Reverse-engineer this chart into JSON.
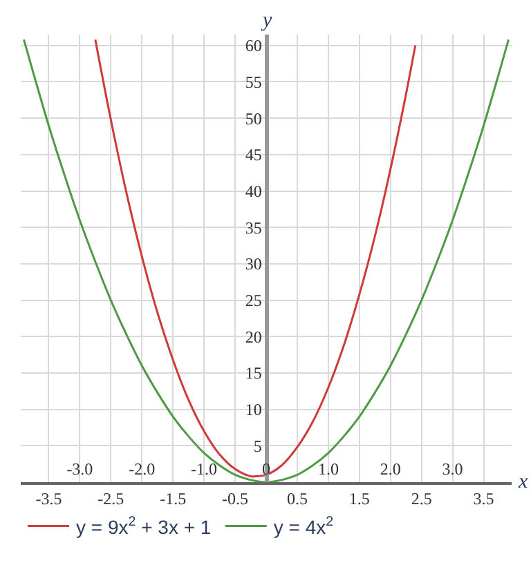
{
  "chart_data": {
    "type": "line",
    "xlabel": "x",
    "ylabel": "y",
    "xlim": [
      -3.95,
      3.95
    ],
    "ylim": [
      0,
      61.5
    ],
    "xticks": [
      -3.5,
      -2.5,
      -1.5,
      -0.5,
      0.5,
      1.5,
      2.5,
      3.5
    ],
    "x2lim": [
      -3.95,
      3.95
    ],
    "x2ticks": [
      {
        "value": -3,
        "label": "-3.0"
      },
      {
        "value": -2,
        "label": "-2.0"
      },
      {
        "value": -1,
        "label": "-1.0"
      },
      0,
      {
        "value": 1,
        "label": "1.0"
      },
      {
        "value": 2,
        "label": "2.0"
      },
      {
        "value": 3,
        "label": "3.0"
      }
    ],
    "yticks": [
      5,
      10,
      15,
      20,
      25,
      30,
      35,
      40,
      45,
      50,
      55,
      60
    ],
    "grid": true,
    "legend": "bottom",
    "marker": "none",
    "line_style": "solid",
    "series": [
      {
        "name": "y = 9x$^{2}$ + 3x + 1",
        "color": "#d03a3a",
        "x": [
          -2.75,
          -2.5,
          -2.25,
          -2,
          -1.75,
          -1.5,
          -1.25,
          -1,
          -0.75,
          -0.5,
          -0.25,
          -0.17,
          0,
          0.25,
          0.5,
          0.75,
          1,
          1.25,
          1.5,
          1.75,
          2,
          2.25,
          2.4
        ],
        "values": [
          60.8,
          49.8,
          39.8,
          31,
          23.3,
          16.8,
          11.3,
          7,
          3.8,
          1.8,
          0.8,
          0.8,
          1,
          2.3,
          4.8,
          8.3,
          13,
          18.8,
          25.8,
          33.8,
          43,
          53.3,
          60
        ]
      },
      {
        "name": "y = 4x$^{2}$",
        "color": "#4e9a45",
        "x": [
          -3.9,
          -3.75,
          -3.5,
          -3.25,
          -3,
          -2.75,
          -2.5,
          -2.25,
          -2,
          -1.75,
          -1.5,
          -1.25,
          -1,
          -0.75,
          -0.5,
          -0.25,
          0,
          0.25,
          0.5,
          0.75,
          1,
          1.25,
          1.5,
          1.75,
          2,
          2.25,
          2.5,
          2.75,
          3,
          3.25,
          3.5,
          3.75,
          3.9
        ],
        "values": [
          60.8,
          56.3,
          49,
          42.3,
          36,
          30.3,
          25,
          20.3,
          16,
          12.3,
          9,
          6.3,
          4,
          2.3,
          1,
          0.3,
          0,
          0.3,
          1,
          2.3,
          4,
          6.3,
          9,
          12.3,
          16,
          20.3,
          25,
          30.3,
          36,
          42.3,
          49,
          56.3,
          60.8
        ]
      }
    ]
  }
}
